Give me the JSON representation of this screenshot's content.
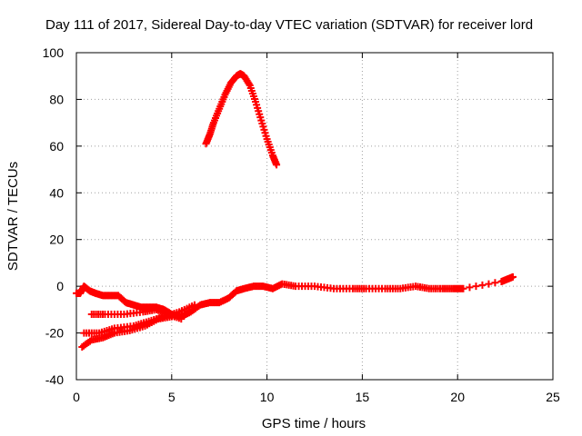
{
  "chart_data": {
    "type": "scatter",
    "title": "Day 111 of 2017, Sidereal Day-to-day VTEC variation (SDTVAR) for receiver lord",
    "xlabel": "GPS time / hours",
    "ylabel": "SDTVAR / TECUs",
    "xlim": [
      0,
      25
    ],
    "ylim": [
      -40,
      100
    ],
    "xticks": [
      0,
      5,
      10,
      15,
      20,
      25
    ],
    "yticks": [
      -40,
      -20,
      0,
      20,
      40,
      60,
      80,
      100
    ],
    "xtick_labels": [
      "0",
      "5",
      "10",
      "15",
      "20",
      "25"
    ],
    "ytick_labels": [
      "-40",
      "-20",
      "0",
      "20",
      "40",
      "60",
      "80",
      "100"
    ],
    "grid": true,
    "marker": "plus",
    "color": "#ff0000",
    "series": [
      {
        "name": "peak-arc",
        "points": [
          [
            6.8,
            61
          ],
          [
            7.0,
            65
          ],
          [
            7.2,
            70
          ],
          [
            7.5,
            76
          ],
          [
            7.8,
            82
          ],
          [
            8.1,
            87
          ],
          [
            8.4,
            90
          ],
          [
            8.6,
            91
          ],
          [
            8.8,
            90
          ],
          [
            9.1,
            86
          ],
          [
            9.4,
            79
          ],
          [
            9.7,
            71
          ],
          [
            10.0,
            63
          ],
          [
            10.3,
            56
          ],
          [
            10.5,
            52
          ]
        ]
      },
      {
        "name": "main-track",
        "points": [
          [
            0.0,
            -3
          ],
          [
            0.2,
            -3
          ],
          [
            0.4,
            0
          ],
          [
            0.7,
            -2
          ],
          [
            1.0,
            -3
          ],
          [
            1.4,
            -4
          ],
          [
            1.8,
            -4
          ],
          [
            2.2,
            -4
          ],
          [
            2.6,
            -7
          ],
          [
            3.0,
            -8
          ],
          [
            3.4,
            -9
          ],
          [
            3.8,
            -9
          ],
          [
            4.2,
            -9
          ],
          [
            4.6,
            -10
          ],
          [
            5.0,
            -12
          ],
          [
            5.5,
            -13
          ],
          [
            6.0,
            -11
          ],
          [
            6.5,
            -8
          ],
          [
            7.0,
            -7
          ],
          [
            7.5,
            -7
          ],
          [
            8.0,
            -5
          ],
          [
            8.4,
            -2
          ],
          [
            8.8,
            -1
          ],
          [
            9.3,
            0
          ],
          [
            9.8,
            0
          ],
          [
            10.3,
            -1
          ],
          [
            10.8,
            1
          ],
          [
            11.5,
            0
          ],
          [
            12.5,
            0
          ],
          [
            13.5,
            -1
          ],
          [
            14.5,
            -1
          ],
          [
            15.2,
            -1
          ],
          [
            16.2,
            -1
          ],
          [
            17.0,
            -1
          ],
          [
            17.8,
            0
          ],
          [
            18.5,
            -1
          ],
          [
            19.2,
            -1
          ],
          [
            19.8,
            -1
          ],
          [
            20.3,
            -1
          ],
          [
            22.3,
            2
          ],
          [
            22.6,
            3
          ],
          [
            22.9,
            4
          ]
        ]
      },
      {
        "name": "track-b",
        "points": [
          [
            0.8,
            -12
          ],
          [
            1.5,
            -12
          ],
          [
            2.5,
            -12
          ],
          [
            3.5,
            -11
          ],
          [
            4.2,
            -10
          ],
          [
            4.8,
            -12
          ],
          [
            5.5,
            -14
          ]
        ]
      },
      {
        "name": "track-c",
        "points": [
          [
            0.4,
            -20
          ],
          [
            1.2,
            -20
          ],
          [
            2.0,
            -18
          ],
          [
            3.0,
            -17
          ],
          [
            3.8,
            -15
          ],
          [
            4.6,
            -13
          ],
          [
            5.4,
            -11
          ],
          [
            6.2,
            -8
          ]
        ]
      },
      {
        "name": "track-d",
        "points": [
          [
            0.3,
            -26
          ],
          [
            0.8,
            -23
          ],
          [
            1.4,
            -22
          ],
          [
            2.0,
            -20
          ],
          [
            2.8,
            -19
          ],
          [
            3.6,
            -17
          ],
          [
            4.3,
            -14
          ],
          [
            5.0,
            -13
          ]
        ]
      }
    ]
  }
}
